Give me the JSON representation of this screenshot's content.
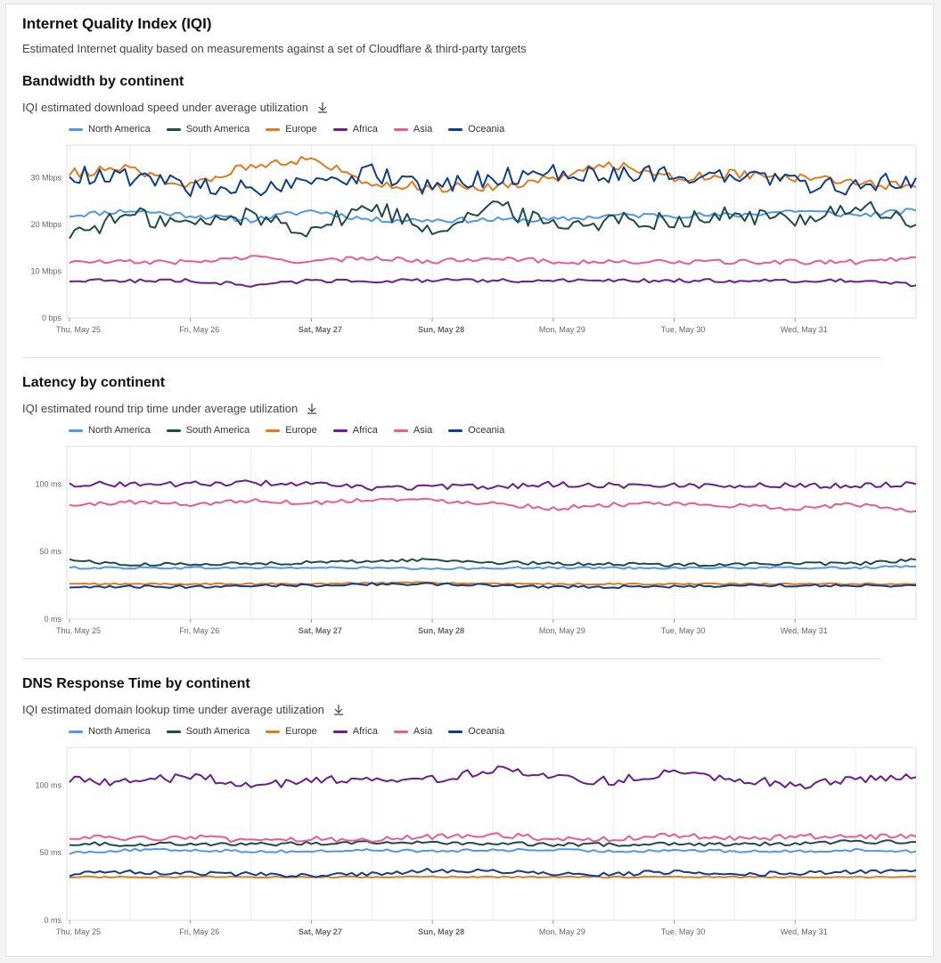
{
  "page": {
    "title": "Internet Quality Index (IQI)",
    "subtitle": "Estimated Internet quality based on measurements against a set of Cloudflare & third-party targets"
  },
  "legend": [
    {
      "name": "North America",
      "color": "#4f97ea"
    },
    {
      "name": "South America",
      "color": "#1f4c4b"
    },
    {
      "name": "Europe",
      "color": "#e07b1f"
    },
    {
      "name": "Africa",
      "color": "#6a1f8c"
    },
    {
      "name": "Asia",
      "color": "#ea5a93"
    },
    {
      "name": "Oceania",
      "color": "#0f3f8a"
    }
  ],
  "x_ticks": [
    {
      "label": "Thu, May 25",
      "bold": false
    },
    {
      "label": "Fri, May 26",
      "bold": false
    },
    {
      "label": "Sat, May 27",
      "bold": true
    },
    {
      "label": "Sun, May 28",
      "bold": true
    },
    {
      "label": "Mon, May 29",
      "bold": false
    },
    {
      "label": "Tue, May 30",
      "bold": false
    },
    {
      "label": "Wed, May 31",
      "bold": false
    }
  ],
  "sections": [
    {
      "title": "Bandwidth by continent",
      "description": "IQI estimated download speed under average utilization",
      "download_icon": "download-icon"
    },
    {
      "title": "Latency by continent",
      "description": "IQI estimated round trip time under average utilization",
      "download_icon": "download-icon"
    },
    {
      "title": "DNS Response Time by continent",
      "description": "IQI estimated domain lookup time under average utilization",
      "download_icon": "download-icon"
    }
  ],
  "chart_data": [
    {
      "type": "line",
      "title": "Bandwidth by continent",
      "x": [
        "May 25 00:00",
        "May 25 12:00",
        "May 26 00:00",
        "May 26 12:00",
        "May 27 00:00",
        "May 27 12:00",
        "May 28 00:00",
        "May 28 12:00",
        "May 29 00:00",
        "May 29 12:00",
        "May 30 00:00",
        "May 30 12:00",
        "May 31 00:00",
        "May 31 12:00",
        "Jun 1 00:00"
      ],
      "y_ticks": [
        "0 bps",
        "10 Mbps",
        "20 Mbps",
        "30 Mbps"
      ],
      "ylim": [
        0,
        37
      ],
      "series": [
        {
          "name": "North America",
          "values": [
            22,
            23,
            22,
            21,
            23,
            21,
            21,
            21,
            21,
            22,
            22,
            22,
            23,
            22,
            23
          ]
        },
        {
          "name": "South America",
          "values": [
            18,
            22,
            20,
            22,
            19,
            24,
            19,
            24,
            20,
            21,
            21,
            22,
            21,
            24,
            20
          ]
        },
        {
          "name": "Europe",
          "values": [
            31,
            32,
            28,
            33,
            34,
            29,
            28,
            28,
            30,
            33,
            30,
            31,
            30,
            29,
            28
          ]
        },
        {
          "name": "Africa",
          "values": [
            8,
            8,
            8,
            7,
            8,
            8,
            8,
            8,
            8,
            8,
            8,
            8,
            8,
            8,
            7
          ]
        },
        {
          "name": "Asia",
          "values": [
            12,
            12,
            12,
            13,
            12,
            13,
            12,
            13,
            12,
            12,
            12,
            12,
            12,
            12,
            13
          ]
        },
        {
          "name": "Oceania",
          "values": [
            31,
            30,
            28,
            28,
            28,
            31,
            28,
            30,
            31,
            31,
            31,
            30,
            29,
            28,
            30
          ]
        }
      ]
    },
    {
      "type": "line",
      "title": "Latency by continent",
      "x": [
        "May 25 00:00",
        "May 25 12:00",
        "May 26 00:00",
        "May 26 12:00",
        "May 27 00:00",
        "May 27 12:00",
        "May 28 00:00",
        "May 28 12:00",
        "May 29 00:00",
        "May 29 12:00",
        "May 30 00:00",
        "May 30 12:00",
        "May 31 00:00",
        "May 31 12:00",
        "Jun 1 00:00"
      ],
      "y_ticks": [
        "0 ms",
        "50 ms",
        "100 ms"
      ],
      "ylim": [
        0,
        128
      ],
      "series": [
        {
          "name": "North America",
          "values": [
            38,
            38,
            38,
            38,
            38,
            38,
            37,
            38,
            38,
            38,
            38,
            38,
            38,
            38,
            39
          ]
        },
        {
          "name": "South America",
          "values": [
            44,
            40,
            41,
            41,
            42,
            43,
            44,
            42,
            41,
            41,
            40,
            41,
            41,
            41,
            44
          ]
        },
        {
          "name": "Europe",
          "values": [
            26,
            26,
            26,
            26,
            26,
            27,
            27,
            26,
            26,
            26,
            26,
            26,
            26,
            26,
            26
          ]
        },
        {
          "name": "Africa",
          "values": [
            100,
            100,
            100,
            101,
            100,
            97,
            98,
            98,
            100,
            99,
            99,
            99,
            99,
            99,
            100
          ]
        },
        {
          "name": "Asia",
          "values": [
            84,
            87,
            85,
            88,
            86,
            89,
            88,
            86,
            82,
            85,
            85,
            84,
            82,
            85,
            80
          ]
        },
        {
          "name": "Oceania",
          "values": [
            23,
            24,
            24,
            25,
            25,
            26,
            26,
            25,
            24,
            24,
            24,
            25,
            25,
            25,
            25
          ]
        }
      ]
    },
    {
      "type": "line",
      "title": "DNS Response Time by continent",
      "x": [
        "May 25 00:00",
        "May 25 12:00",
        "May 26 00:00",
        "May 26 12:00",
        "May 27 00:00",
        "May 27 12:00",
        "May 28 00:00",
        "May 28 12:00",
        "May 29 00:00",
        "May 29 12:00",
        "May 30 00:00",
        "May 30 12:00",
        "May 31 00:00",
        "May 31 12:00",
        "Jun 1 00:00"
      ],
      "y_ticks": [
        "0 ms",
        "50 ms",
        "100 ms"
      ],
      "ylim": [
        0,
        128
      ],
      "series": [
        {
          "name": "North America",
          "values": [
            50,
            52,
            52,
            51,
            51,
            52,
            51,
            52,
            52,
            51,
            52,
            51,
            51,
            52,
            51
          ]
        },
        {
          "name": "South America",
          "values": [
            57,
            56,
            57,
            56,
            57,
            58,
            57,
            57,
            56,
            56,
            57,
            56,
            57,
            58,
            58
          ]
        },
        {
          "name": "Europe",
          "values": [
            32,
            32,
            32,
            32,
            32,
            32,
            32,
            32,
            32,
            32,
            32,
            32,
            32,
            32,
            32
          ]
        },
        {
          "name": "Africa",
          "values": [
            105,
            102,
            107,
            100,
            103,
            106,
            104,
            112,
            105,
            103,
            110,
            105,
            100,
            104,
            106
          ]
        },
        {
          "name": "Asia",
          "values": [
            62,
            60,
            62,
            58,
            60,
            60,
            62,
            64,
            60,
            60,
            63,
            60,
            62,
            62,
            62
          ]
        },
        {
          "name": "Oceania",
          "values": [
            34,
            36,
            35,
            34,
            33,
            34,
            37,
            36,
            34,
            34,
            36,
            34,
            35,
            36,
            37
          ]
        }
      ]
    }
  ]
}
